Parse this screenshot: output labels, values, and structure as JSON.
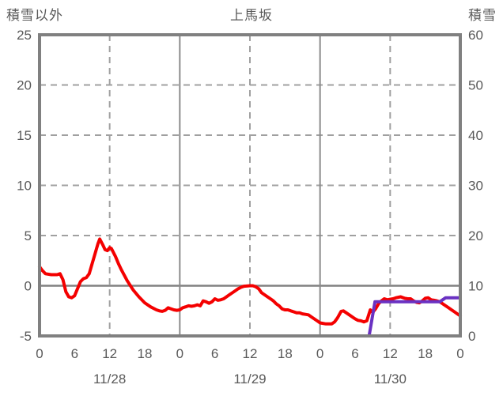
{
  "title": "上馬坂",
  "left_axis": {
    "label": "積雪以外",
    "min": -5,
    "max": 25,
    "ticks": [
      25,
      20,
      15,
      10,
      5,
      0,
      -5
    ]
  },
  "right_axis": {
    "label": "積雪",
    "min": 0,
    "max": 60,
    "ticks": [
      60,
      50,
      40,
      30,
      20,
      10,
      0
    ]
  },
  "x_axis": {
    "hours_total": 72,
    "tick_step_hours": 6,
    "hour_tick_labels": [
      "0",
      "6",
      "12",
      "18",
      "0",
      "6",
      "12",
      "18",
      "0",
      "6",
      "12",
      "18",
      "0"
    ],
    "date_labels": [
      "11/28",
      "11/29",
      "11/30"
    ],
    "noon_hours": [
      12,
      36,
      60
    ],
    "midnight_hours": [
      24,
      48
    ]
  },
  "colors": {
    "text_gray": "#595959",
    "frame_gray": "#808080",
    "grid_dashed_gray": "#a0a0a0",
    "grid_solid_gray": "#8c8c8c",
    "zero_line_gray": "#808080",
    "temperature_red": "#f40000",
    "snow_purple": "#6a31c2"
  },
  "chart_data": {
    "type": "line",
    "title": "上馬坂",
    "xlabel": "",
    "ylabel_left": "積雪以外",
    "ylabel_right": "積雪",
    "x_unit": "hours since 11/28 00:00",
    "ylim_left": [
      -5,
      25
    ],
    "ylim_right": [
      0,
      60
    ],
    "grid": "on",
    "legend": "none",
    "series": [
      {
        "name": "積雪以外",
        "axis": "left",
        "color": "#f40000",
        "points": [
          [
            0,
            1.9
          ],
          [
            0.5,
            1.5
          ],
          [
            1,
            1.2
          ],
          [
            2,
            1.1
          ],
          [
            3,
            1.1
          ],
          [
            3.5,
            1.2
          ],
          [
            4,
            0.6
          ],
          [
            4.5,
            -0.6
          ],
          [
            5,
            -1.1
          ],
          [
            5.5,
            -1.2
          ],
          [
            6,
            -1.0
          ],
          [
            6.5,
            -0.3
          ],
          [
            7,
            0.4
          ],
          [
            7.5,
            0.7
          ],
          [
            8,
            0.8
          ],
          [
            8.5,
            1.2
          ],
          [
            9,
            2.2
          ],
          [
            9.5,
            3.2
          ],
          [
            10,
            4.2
          ],
          [
            10.3,
            4.65
          ],
          [
            10.8,
            4.1
          ],
          [
            11.2,
            3.6
          ],
          [
            11.6,
            3.5
          ],
          [
            12,
            3.8
          ],
          [
            12.3,
            3.7
          ],
          [
            13,
            2.9
          ],
          [
            13.5,
            2.2
          ],
          [
            14,
            1.6
          ],
          [
            15,
            0.5
          ],
          [
            16,
            -0.4
          ],
          [
            17,
            -1.1
          ],
          [
            18,
            -1.7
          ],
          [
            19,
            -2.1
          ],
          [
            20,
            -2.4
          ],
          [
            20.5,
            -2.5
          ],
          [
            21,
            -2.55
          ],
          [
            21.5,
            -2.45
          ],
          [
            22,
            -2.2
          ],
          [
            22.5,
            -2.3
          ],
          [
            23,
            -2.4
          ],
          [
            23.5,
            -2.45
          ],
          [
            24,
            -2.4
          ],
          [
            24.5,
            -2.2
          ],
          [
            25,
            -2.1
          ],
          [
            25.5,
            -2.0
          ],
          [
            26,
            -2.05
          ],
          [
            26.5,
            -2.0
          ],
          [
            27,
            -1.9
          ],
          [
            27.5,
            -2.0
          ],
          [
            28,
            -1.5
          ],
          [
            28.5,
            -1.6
          ],
          [
            29,
            -1.75
          ],
          [
            29.5,
            -1.6
          ],
          [
            30,
            -1.3
          ],
          [
            30.5,
            -1.45
          ],
          [
            31,
            -1.4
          ],
          [
            31.5,
            -1.3
          ],
          [
            32,
            -1.1
          ],
          [
            32.5,
            -0.9
          ],
          [
            33,
            -0.7
          ],
          [
            33.5,
            -0.5
          ],
          [
            34,
            -0.3
          ],
          [
            34.5,
            -0.15
          ],
          [
            35,
            -0.05
          ],
          [
            36,
            0.0
          ],
          [
            36.5,
            0.0
          ],
          [
            37,
            -0.1
          ],
          [
            37.5,
            -0.3
          ],
          [
            38,
            -0.7
          ],
          [
            39,
            -1.1
          ],
          [
            39.5,
            -1.3
          ],
          [
            40,
            -1.5
          ],
          [
            40.5,
            -1.8
          ],
          [
            41,
            -2.0
          ],
          [
            41.5,
            -2.3
          ],
          [
            42,
            -2.4
          ],
          [
            42.5,
            -2.4
          ],
          [
            43,
            -2.5
          ],
          [
            43.5,
            -2.6
          ],
          [
            44,
            -2.7
          ],
          [
            44.5,
            -2.7
          ],
          [
            45,
            -2.8
          ],
          [
            45.5,
            -2.85
          ],
          [
            46,
            -2.9
          ],
          [
            46.5,
            -3.1
          ],
          [
            47,
            -3.3
          ],
          [
            47.5,
            -3.5
          ],
          [
            48,
            -3.7
          ],
          [
            49,
            -3.8
          ],
          [
            50,
            -3.8
          ],
          [
            50.5,
            -3.6
          ],
          [
            51,
            -3.2
          ],
          [
            51.6,
            -2.55
          ],
          [
            52,
            -2.5
          ],
          [
            52.5,
            -2.7
          ],
          [
            53,
            -2.9
          ],
          [
            53.5,
            -3.1
          ],
          [
            54,
            -3.3
          ],
          [
            54.5,
            -3.45
          ],
          [
            55,
            -3.5
          ],
          [
            55.5,
            -3.6
          ],
          [
            56,
            -3.5
          ],
          [
            56.6,
            -2.4
          ],
          [
            57,
            -2.65
          ],
          [
            57.5,
            -2.3
          ],
          [
            58,
            -1.8
          ],
          [
            58.5,
            -1.5
          ],
          [
            59,
            -1.3
          ],
          [
            59.5,
            -1.4
          ],
          [
            60,
            -1.35
          ],
          [
            60.5,
            -1.3
          ],
          [
            61,
            -1.2
          ],
          [
            61.8,
            -1.1
          ],
          [
            62.5,
            -1.25
          ],
          [
            63,
            -1.3
          ],
          [
            63.5,
            -1.3
          ],
          [
            64,
            -1.5
          ],
          [
            64.5,
            -1.65
          ],
          [
            65,
            -1.7
          ],
          [
            65.5,
            -1.5
          ],
          [
            66,
            -1.25
          ],
          [
            66.5,
            -1.2
          ],
          [
            67,
            -1.4
          ],
          [
            67.5,
            -1.45
          ],
          [
            68,
            -1.5
          ],
          [
            68.5,
            -1.6
          ],
          [
            69,
            -1.8
          ],
          [
            69.5,
            -2.0
          ],
          [
            70,
            -2.2
          ],
          [
            70.5,
            -2.4
          ],
          [
            71,
            -2.6
          ],
          [
            71.5,
            -2.8
          ],
          [
            72,
            -3.0
          ]
        ]
      },
      {
        "name": "積雪",
        "axis": "right",
        "color": "#6a31c2",
        "points": [
          [
            0,
            0
          ],
          [
            56.4,
            0
          ],
          [
            57.4,
            6.8
          ],
          [
            68.5,
            6.8
          ],
          [
            69.5,
            7.6
          ],
          [
            72,
            7.6
          ]
        ]
      }
    ]
  }
}
